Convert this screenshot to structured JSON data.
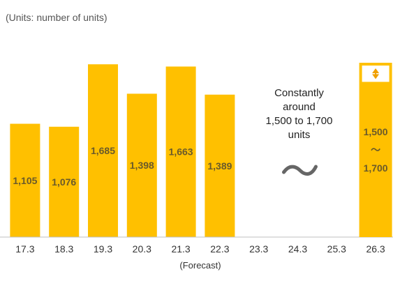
{
  "chart_data": {
    "type": "bar",
    "units_note": "(Units: number of units)",
    "categories": [
      "17.3",
      "18.3",
      "19.3",
      "20.3",
      "21.3",
      "22.3",
      "23.3",
      "24.3",
      "25.3",
      "26.3"
    ],
    "values": [
      1105,
      1076,
      1685,
      1398,
      1663,
      1389,
      null,
      null,
      null,
      null
    ],
    "value_labels": [
      "1,105",
      "1,076",
      "1,685",
      "1,398",
      "1,663",
      "1,389",
      "",
      "",
      "",
      ""
    ],
    "forecast_note": "(Forecast)",
    "annotation_lines": [
      "Constantly",
      "around",
      "1,500 to 1,700",
      "units"
    ],
    "tilde_mark": "~",
    "target_range": {
      "category": "26.3",
      "low": 1500,
      "high": 1700,
      "label_low": "1,500",
      "label_sep": "～",
      "label_high": "1,700"
    },
    "ylim": [
      0,
      1700
    ],
    "colors": {
      "bar": "#FFC000",
      "axis": "#BFBFBF",
      "arrow": "#F0A000"
    },
    "grid": false,
    "legend": "none"
  }
}
